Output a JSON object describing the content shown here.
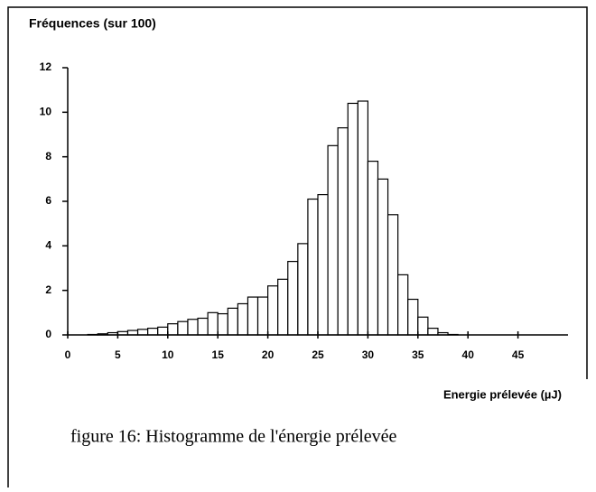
{
  "chart_data": {
    "type": "histogram",
    "y_label": "Fréquences (sur 100)",
    "x_label": "Energie prélevée (µJ)",
    "caption": "figure 16: Histogramme de l'énergie prélevée",
    "bins": [
      0,
      1,
      2,
      3,
      4,
      5,
      6,
      7,
      8,
      9,
      10,
      11,
      12,
      13,
      14,
      15,
      16,
      17,
      18,
      19,
      20,
      21,
      22,
      23,
      24,
      25,
      26,
      27,
      28,
      29,
      30,
      31,
      32,
      33,
      34,
      35,
      36,
      37,
      38,
      39,
      40
    ],
    "counts": [
      0,
      0,
      0.02,
      0.05,
      0.1,
      0.15,
      0.2,
      0.25,
      0.3,
      0.35,
      0.5,
      0.6,
      0.7,
      0.75,
      1.0,
      0.95,
      1.2,
      1.4,
      1.7,
      1.7,
      2.2,
      2.5,
      3.3,
      4.1,
      6.1,
      6.3,
      8.5,
      9.3,
      10.4,
      10.5,
      7.8,
      7.0,
      5.4,
      2.7,
      1.6,
      0.8,
      0.3,
      0.1,
      0.02,
      0
    ],
    "color": "#ffffff",
    "xlim": [
      0,
      50
    ],
    "xticks": [
      0,
      5,
      10,
      15,
      20,
      25,
      30,
      35,
      40,
      45
    ],
    "ylim": [
      0,
      12
    ],
    "yticks": [
      0,
      2,
      4,
      6,
      8,
      10,
      12
    ]
  }
}
